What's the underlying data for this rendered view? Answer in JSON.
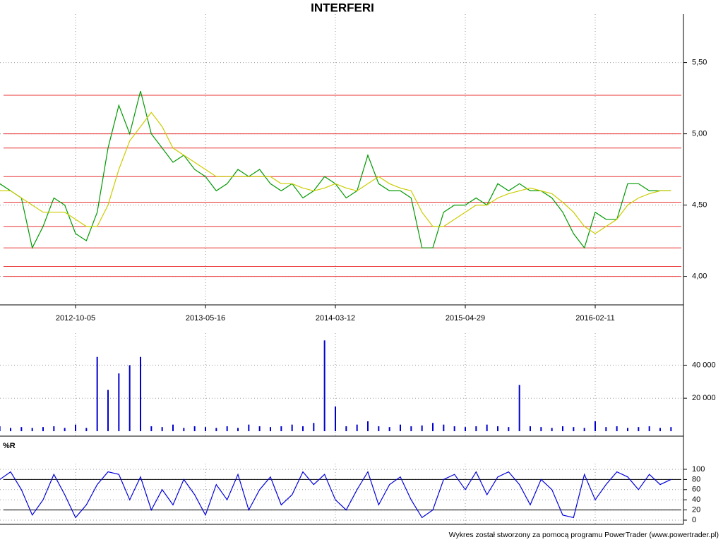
{
  "chart_data": [
    {
      "type": "line",
      "title": "INTERFERI",
      "categories": [
        null,
        null,
        null,
        null,
        null,
        null,
        null,
        "2012-10-05",
        null,
        null,
        null,
        null,
        null,
        null,
        null,
        null,
        null,
        null,
        null,
        "2013-05-16",
        null,
        null,
        null,
        null,
        null,
        null,
        null,
        null,
        null,
        null,
        null,
        "2014-03-12",
        null,
        null,
        null,
        null,
        null,
        null,
        null,
        null,
        null,
        null,
        null,
        "2015-04-29",
        null,
        null,
        null,
        null,
        null,
        null,
        null,
        null,
        null,
        null,
        null,
        "2016-02-11",
        null,
        null,
        null,
        null,
        null,
        null,
        null
      ],
      "series": [
        {
          "color": "#009900",
          "values": [
            4.65,
            4.6,
            4.55,
            4.2,
            4.35,
            4.55,
            4.5,
            4.3,
            4.25,
            4.45,
            4.9,
            5.2,
            5.0,
            5.3,
            5.0,
            4.9,
            4.8,
            4.85,
            4.75,
            4.7,
            4.6,
            4.65,
            4.75,
            4.7,
            4.75,
            4.65,
            4.6,
            4.65,
            4.55,
            4.6,
            4.7,
            4.65,
            4.55,
            4.6,
            4.85,
            4.65,
            4.6,
            4.6,
            4.55,
            4.2,
            4.2,
            4.45,
            4.5,
            4.5,
            4.55,
            4.5,
            4.65,
            4.6,
            4.65,
            4.6,
            4.6,
            4.55,
            4.45,
            4.3,
            4.2,
            4.45,
            4.4,
            4.4,
            4.65,
            4.65,
            4.6,
            4.6,
            4.6
          ]
        },
        {
          "color": "#cccc00",
          "values": [
            4.6,
            4.6,
            4.55,
            4.5,
            4.45,
            4.45,
            4.45,
            4.4,
            4.35,
            4.35,
            4.5,
            4.75,
            4.95,
            5.05,
            5.15,
            5.05,
            4.9,
            4.85,
            4.8,
            4.75,
            4.7,
            4.7,
            4.7,
            4.7,
            4.7,
            4.7,
            4.65,
            4.65,
            4.62,
            4.6,
            4.62,
            4.65,
            4.62,
            4.6,
            4.65,
            4.7,
            4.65,
            4.62,
            4.6,
            4.45,
            4.35,
            4.35,
            4.4,
            4.45,
            4.5,
            4.5,
            4.55,
            4.58,
            4.6,
            4.62,
            4.6,
            4.58,
            4.52,
            4.45,
            4.35,
            4.3,
            4.35,
            4.4,
            4.5,
            4.55,
            4.58,
            4.6,
            4.6
          ]
        }
      ],
      "ylim": [
        3.8,
        5.8
      ],
      "yticks": [
        {
          "value": 4.0,
          "label": "4,00"
        },
        {
          "value": 4.5,
          "label": "4,50"
        },
        {
          "value": 5.0,
          "label": "5,00"
        },
        {
          "value": 5.5,
          "label": "5,50"
        }
      ],
      "hlines": [
        5.27,
        5.0,
        4.9,
        4.7,
        4.52,
        4.35,
        4.2,
        4.07,
        4.0
      ],
      "hline_color": "#e83030",
      "grid": true
    },
    {
      "type": "bar",
      "color": "#0000cc",
      "values": [
        3000,
        2000,
        2500,
        2000,
        2500,
        3000,
        2000,
        4000,
        2000,
        45000,
        25000,
        35000,
        40000,
        45000,
        3000,
        2500,
        4000,
        2000,
        3000,
        2500,
        2000,
        3000,
        2000,
        4000,
        3000,
        2500,
        3000,
        4000,
        3000,
        5000,
        55000,
        15000,
        3000,
        4000,
        6000,
        3000,
        2500,
        4000,
        3000,
        3500,
        5000,
        4000,
        3000,
        2500,
        3000,
        4000,
        3000,
        2500,
        28000,
        3000,
        2500,
        2000,
        3000,
        2500,
        2000,
        6000,
        2500,
        3000,
        2000,
        2500,
        3000,
        2000,
        2500
      ],
      "ylim": [
        0,
        56000
      ],
      "yticks": [
        {
          "value": 20000,
          "label": "20 000"
        },
        {
          "value": 40000,
          "label": "40 000"
        }
      ],
      "grid": true
    },
    {
      "type": "line",
      "title": "%R",
      "series": [
        {
          "color": "#0000dd",
          "values": [
            80,
            95,
            60,
            10,
            40,
            90,
            50,
            5,
            30,
            70,
            95,
            90,
            40,
            85,
            20,
            60,
            30,
            80,
            50,
            10,
            70,
            40,
            90,
            20,
            60,
            85,
            30,
            50,
            95,
            70,
            90,
            40,
            20,
            60,
            95,
            30,
            70,
            85,
            40,
            5,
            20,
            80,
            90,
            60,
            95,
            50,
            85,
            95,
            70,
            30,
            80,
            60,
            10,
            5,
            90,
            40,
            70,
            95,
            85,
            60,
            90,
            70,
            80
          ]
        }
      ],
      "ylim": [
        0,
        100
      ],
      "yticks": [
        0,
        20,
        40,
        60,
        80,
        100
      ],
      "hlines": [
        20,
        80
      ],
      "hline_color": "#000000",
      "grid": true
    }
  ],
  "footer": "Wykres został stworzony za pomocą programu PowerTrader (www.powertrader.pl)"
}
